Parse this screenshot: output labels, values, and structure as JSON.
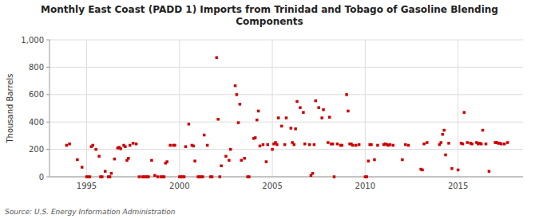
{
  "chart_data": {
    "type": "scatter",
    "title": "Monthly East Coast (PADD 1) Imports from Trinidad and Tobago of Gasoline Blending\nComponents",
    "ylabel": "Thousand Barrels",
    "annotations": [
      "Source: U.S. Energy Information Administration"
    ],
    "color": "#cc0000",
    "marker": "square",
    "grid": true,
    "xlim": [
      1993.0,
      2018.5
    ],
    "ylim": [
      0,
      1000
    ],
    "xticks": [
      1995,
      2000,
      2005,
      2010,
      2015
    ],
    "yticks": [
      0,
      200,
      400,
      600,
      800,
      {
        "value": 1000,
        "label": "1,000"
      }
    ],
    "x": [
      1993.92,
      1994.08,
      1994.5,
      1994.75,
      1995.0,
      1995.08,
      1995.17,
      1995.25,
      1995.33,
      1995.5,
      1995.67,
      1995.75,
      1995.83,
      1996.0,
      1996.17,
      1996.25,
      1996.33,
      1996.5,
      1996.67,
      1996.75,
      1996.83,
      1997.0,
      1997.08,
      1997.17,
      1997.25,
      1997.33,
      1997.5,
      1997.67,
      1997.83,
      1998.0,
      1998.08,
      1998.17,
      1998.25,
      1998.33,
      1998.5,
      1998.67,
      1998.83,
      1999.0,
      1999.08,
      1999.17,
      1999.25,
      1999.33,
      1999.5,
      1999.67,
      1999.75,
      2000.0,
      2000.08,
      2000.17,
      2000.25,
      2000.33,
      2000.5,
      2000.67,
      2000.75,
      2000.83,
      2001.0,
      2001.08,
      2001.17,
      2001.25,
      2001.33,
      2001.5,
      2001.67,
      2001.75,
      2002.0,
      2002.08,
      2002.17,
      2002.25,
      2002.5,
      2002.67,
      2002.75,
      2003.0,
      2003.08,
      2003.17,
      2003.25,
      2003.33,
      2003.5,
      2003.67,
      2003.75,
      2004.0,
      2004.08,
      2004.17,
      2004.25,
      2004.33,
      2004.5,
      2004.67,
      2004.75,
      2005.0,
      2005.08,
      2005.17,
      2005.25,
      2005.33,
      2005.5,
      2005.67,
      2005.75,
      2006.0,
      2006.08,
      2006.17,
      2006.25,
      2006.33,
      2006.5,
      2006.67,
      2006.75,
      2007.0,
      2007.08,
      2007.17,
      2007.25,
      2007.33,
      2007.5,
      2007.67,
      2007.75,
      2008.0,
      2008.08,
      2008.17,
      2008.25,
      2008.33,
      2008.5,
      2008.67,
      2008.75,
      2009.0,
      2009.08,
      2009.17,
      2009.25,
      2009.33,
      2009.5,
      2009.67,
      2010.0,
      2010.08,
      2010.17,
      2010.25,
      2010.33,
      2010.5,
      2010.67,
      2011.0,
      2011.08,
      2011.17,
      2011.25,
      2011.33,
      2011.5,
      2012.0,
      2012.17,
      2012.33,
      2013.0,
      2013.08,
      2013.17,
      2013.33,
      2014.0,
      2014.08,
      2014.17,
      2014.25,
      2014.33,
      2014.5,
      2014.67,
      2015.0,
      2015.17,
      2015.25,
      2015.33,
      2015.5,
      2015.67,
      2015.75,
      2016.0,
      2016.08,
      2016.17,
      2016.25,
      2016.33,
      2016.5,
      2016.67,
      2017.0,
      2017.08,
      2017.17,
      2017.25,
      2017.33,
      2017.5,
      2017.67
    ],
    "values": [
      230,
      240,
      125,
      70,
      0,
      0,
      0,
      220,
      230,
      200,
      150,
      0,
      0,
      40,
      0,
      0,
      25,
      130,
      210,
      215,
      205,
      230,
      220,
      120,
      135,
      230,
      245,
      240,
      0,
      0,
      0,
      0,
      0,
      0,
      120,
      10,
      0,
      0,
      0,
      0,
      100,
      110,
      230,
      230,
      230,
      0,
      0,
      0,
      0,
      220,
      385,
      230,
      225,
      115,
      0,
      0,
      0,
      0,
      305,
      230,
      0,
      0,
      870,
      420,
      0,
      80,
      150,
      120,
      200,
      665,
      600,
      395,
      530,
      120,
      135,
      0,
      0,
      280,
      285,
      415,
      480,
      225,
      235,
      110,
      235,
      200,
      240,
      250,
      235,
      430,
      370,
      235,
      430,
      355,
      250,
      235,
      350,
      550,
      505,
      470,
      240,
      235,
      10,
      25,
      235,
      555,
      505,
      430,
      490,
      250,
      435,
      240,
      240,
      0,
      240,
      230,
      230,
      600,
      480,
      240,
      240,
      230,
      230,
      235,
      0,
      0,
      115,
      235,
      235,
      125,
      230,
      235,
      240,
      235,
      230,
      235,
      230,
      125,
      235,
      230,
      55,
      50,
      240,
      250,
      235,
      250,
      310,
      340,
      160,
      245,
      60,
      50,
      245,
      240,
      470,
      250,
      245,
      240,
      250,
      240,
      245,
      240,
      340,
      240,
      40,
      250,
      250,
      245,
      245,
      240,
      240,
      250
    ]
  }
}
